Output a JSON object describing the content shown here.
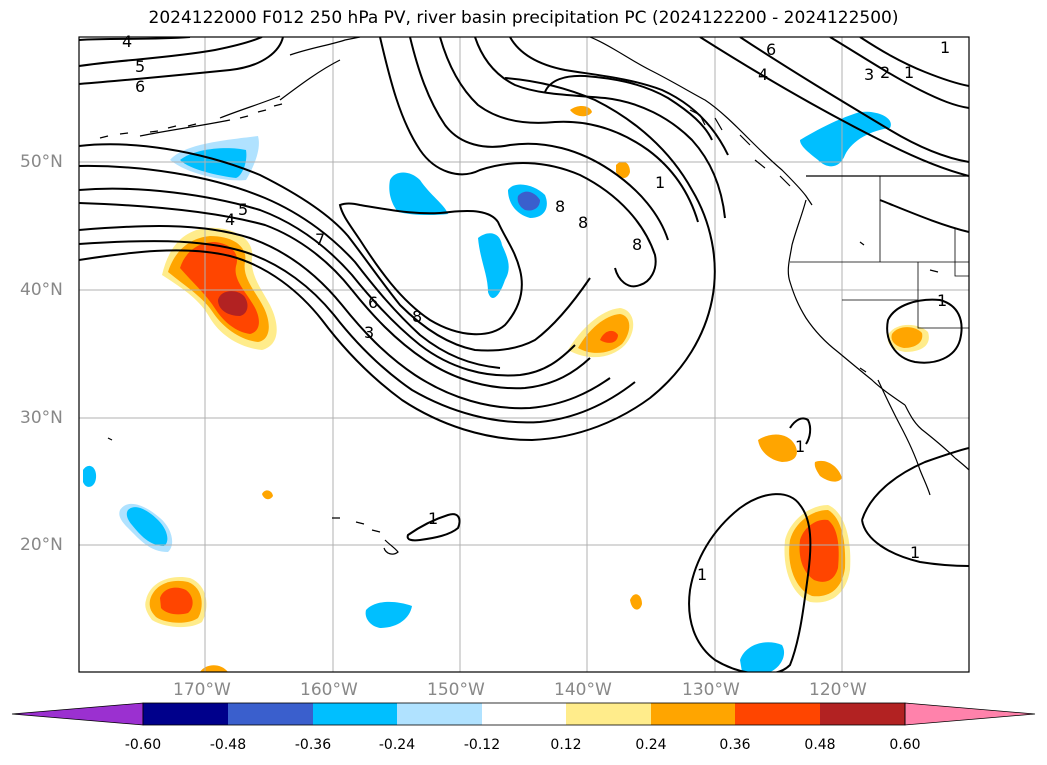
{
  "title": "2024122000 F012 250 hPa PV, river basin precipitation PC (2024122200 - 2024122500)",
  "latitude_labels": [
    "50°N",
    "40°N",
    "30°N",
    "20°N"
  ],
  "longitude_labels": [
    "170°W",
    "160°W",
    "150°W",
    "140°W",
    "130°W",
    "120°W"
  ],
  "pv_contour_labels": [
    "4",
    "5",
    "6",
    "5",
    "4",
    "7",
    "6",
    "3",
    "8",
    "1",
    "8",
    "8",
    "8",
    "1",
    "1",
    "1",
    "1",
    "1",
    "6",
    "4",
    "3",
    "2",
    "1",
    "1"
  ],
  "colorbar": {
    "ticks": [
      "-0.60",
      "-0.48",
      "-0.36",
      "-0.24",
      "-0.12",
      "0.12",
      "0.24",
      "0.36",
      "0.48",
      "0.60"
    ],
    "colors": [
      "#9b30d0",
      "#00008b",
      "#3a5fcd",
      "#00bfff",
      "#b0e2ff",
      "#ffffff",
      "#ffec8b",
      "#ffa500",
      "#ff4500",
      "#b22222",
      "#ff82ab"
    ]
  },
  "map_colors": {
    "land_outline": "#000000",
    "grid": "#b0b0b0",
    "contour": "#000000"
  }
}
